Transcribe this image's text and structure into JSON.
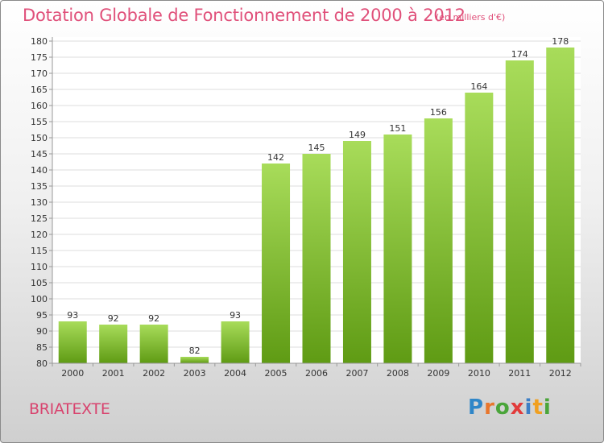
{
  "title": "Dotation Globale de Fonctionnement de 2000 à 2012",
  "unit_note": "(en milliers d'€)",
  "commune": "BRIATEXTE",
  "logo": {
    "letters": [
      "P",
      "r",
      "o",
      "x",
      "i",
      "t",
      "i"
    ],
    "colors": [
      "#2f86c8",
      "#e8762c",
      "#4aa53a",
      "#e23b3b",
      "#3d7fc6",
      "#f0a021",
      "#4aa53a"
    ]
  },
  "colors": {
    "bar_top": "#a8dc5a",
    "bar_bottom": "#5f9b14",
    "title": "#e0507a"
  },
  "chart_data": {
    "type": "bar",
    "categories": [
      "2000",
      "2001",
      "2002",
      "2003",
      "2004",
      "2005",
      "2006",
      "2007",
      "2008",
      "2009",
      "2010",
      "2011",
      "2012"
    ],
    "values": [
      93,
      92,
      92,
      82,
      93,
      142,
      145,
      149,
      151,
      156,
      164,
      174,
      178
    ],
    "ylim": [
      80,
      180
    ],
    "ytick_step": 5,
    "grid": true,
    "data_labels": true
  }
}
